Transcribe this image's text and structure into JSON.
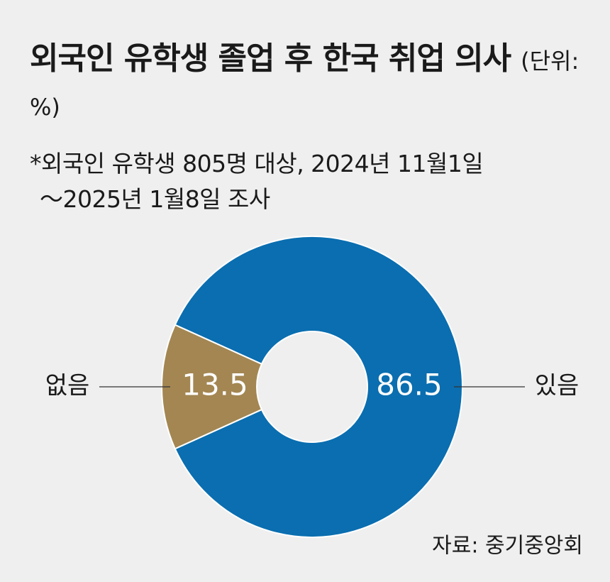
{
  "chart_data": {
    "type": "donut",
    "title": "외국인 유학생 졸업 후 한국 취업 의사",
    "unit": "(단위: %)",
    "note_lines": [
      "*외국인 유학생 805명 대상, 2024년 11월1일",
      "～2025년 1월8일 조사"
    ],
    "categories": [
      "있음",
      "없음"
    ],
    "values": [
      86.5,
      13.5
    ],
    "colors": [
      "#0a6eb0",
      "#a38652"
    ],
    "source": "자료: 중기중앙회"
  }
}
